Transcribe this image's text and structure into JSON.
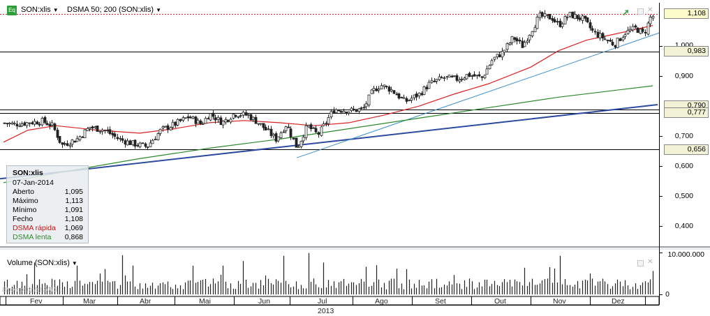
{
  "header": {
    "eq_badge": "Eq",
    "symbol_label": "SON:xlis",
    "indicator_label": "DSMA 50; 200 (SON:xlis)"
  },
  "info": {
    "symbol": "SON:xlis",
    "date": "07-Jan-2014",
    "rows": [
      {
        "label": "Aberto",
        "value": "1,095",
        "color": "#000000"
      },
      {
        "label": "Máximo",
        "value": "1,113",
        "color": "#000000"
      },
      {
        "label": "Mínimo",
        "value": "1,091",
        "color": "#000000"
      },
      {
        "label": "Fecho",
        "value": "1,108",
        "color": "#000000"
      },
      {
        "label": "DSMA rápida",
        "value": "1,069",
        "color": "#cc1111"
      },
      {
        "label": "DSMA lenta",
        "value": "0,868",
        "color": "#2a8a2a"
      }
    ]
  },
  "volume_header": "Volume (SON:xlis)",
  "watermark": "Bloomberg (c) 2013",
  "colors": {
    "candle": "#222222",
    "fast_ma": "#dd2222",
    "slow_ma": "#2a8a2a",
    "trend_blue": "#2d4aa0",
    "trend_light": "#3d8fd0",
    "hline": "#000000",
    "last_price_line": "#cc2222"
  },
  "chart_data": {
    "type": "candlestick",
    "y_axis": {
      "range": [
        0.35,
        1.13
      ],
      "ticks": [
        {
          "value": 0.4,
          "label": "0,400"
        },
        {
          "value": 0.5,
          "label": "0,500"
        },
        {
          "value": 0.6,
          "label": "0,600"
        },
        {
          "value": 0.7,
          "label": "0,700"
        },
        {
          "value": 0.9,
          "label": "0,900"
        },
        {
          "value": 1.0,
          "label": "1,000"
        }
      ]
    },
    "x_axis": {
      "months": [
        "Fev",
        "Mar",
        "Abr",
        "Mai",
        "Jun",
        "Jul",
        "Ago",
        "Set",
        "Out",
        "Nov",
        "Dez"
      ],
      "year": "2013"
    },
    "price_path": [
      {
        "x": 0,
        "y": 0.745
      },
      {
        "x": 20,
        "y": 0.74
      },
      {
        "x": 40,
        "y": 0.745
      },
      {
        "x": 60,
        "y": 0.75
      },
      {
        "x": 75,
        "y": 0.735
      },
      {
        "x": 88,
        "y": 0.67
      },
      {
        "x": 110,
        "y": 0.69
      },
      {
        "x": 128,
        "y": 0.73
      },
      {
        "x": 150,
        "y": 0.72
      },
      {
        "x": 170,
        "y": 0.69
      },
      {
        "x": 190,
        "y": 0.675
      },
      {
        "x": 210,
        "y": 0.665
      },
      {
        "x": 230,
        "y": 0.72
      },
      {
        "x": 250,
        "y": 0.74
      },
      {
        "x": 270,
        "y": 0.765
      },
      {
        "x": 288,
        "y": 0.74
      },
      {
        "x": 300,
        "y": 0.775
      },
      {
        "x": 318,
        "y": 0.745
      },
      {
        "x": 335,
        "y": 0.775
      },
      {
        "x": 355,
        "y": 0.77
      },
      {
        "x": 372,
        "y": 0.74
      },
      {
        "x": 395,
        "y": 0.69
      },
      {
        "x": 410,
        "y": 0.74
      },
      {
        "x": 425,
        "y": 0.66
      },
      {
        "x": 440,
        "y": 0.735
      },
      {
        "x": 455,
        "y": 0.705
      },
      {
        "x": 465,
        "y": 0.74
      },
      {
        "x": 478,
        "y": 0.79
      },
      {
        "x": 500,
        "y": 0.785
      },
      {
        "x": 520,
        "y": 0.79
      },
      {
        "x": 533,
        "y": 0.85
      },
      {
        "x": 545,
        "y": 0.87
      },
      {
        "x": 560,
        "y": 0.855
      },
      {
        "x": 580,
        "y": 0.815
      },
      {
        "x": 600,
        "y": 0.84
      },
      {
        "x": 615,
        "y": 0.875
      },
      {
        "x": 635,
        "y": 0.895
      },
      {
        "x": 655,
        "y": 0.89
      },
      {
        "x": 670,
        "y": 0.905
      },
      {
        "x": 690,
        "y": 0.895
      },
      {
        "x": 705,
        "y": 0.955
      },
      {
        "x": 720,
        "y": 0.98
      },
      {
        "x": 735,
        "y": 1.03
      },
      {
        "x": 748,
        "y": 1.0
      },
      {
        "x": 760,
        "y": 1.05
      },
      {
        "x": 772,
        "y": 1.1
      },
      {
        "x": 790,
        "y": 1.095
      },
      {
        "x": 800,
        "y": 1.07
      },
      {
        "x": 815,
        "y": 1.105
      },
      {
        "x": 835,
        "y": 1.09
      },
      {
        "x": 850,
        "y": 1.045
      },
      {
        "x": 862,
        "y": 1.03
      },
      {
        "x": 880,
        "y": 1.005
      },
      {
        "x": 895,
        "y": 1.045
      },
      {
        "x": 910,
        "y": 1.06
      },
      {
        "x": 922,
        "y": 1.04
      },
      {
        "x": 932,
        "y": 1.1
      }
    ],
    "fast_ma": [
      {
        "x": 5,
        "y": 0.68
      },
      {
        "x": 40,
        "y": 0.72
      },
      {
        "x": 80,
        "y": 0.735
      },
      {
        "x": 140,
        "y": 0.72
      },
      {
        "x": 200,
        "y": 0.71
      },
      {
        "x": 250,
        "y": 0.725
      },
      {
        "x": 300,
        "y": 0.745
      },
      {
        "x": 350,
        "y": 0.752
      },
      {
        "x": 400,
        "y": 0.745
      },
      {
        "x": 450,
        "y": 0.735
      },
      {
        "x": 500,
        "y": 0.745
      },
      {
        "x": 550,
        "y": 0.77
      },
      {
        "x": 600,
        "y": 0.8
      },
      {
        "x": 650,
        "y": 0.84
      },
      {
        "x": 700,
        "y": 0.875
      },
      {
        "x": 760,
        "y": 0.93
      },
      {
        "x": 800,
        "y": 0.985
      },
      {
        "x": 840,
        "y": 1.02
      },
      {
        "x": 880,
        "y": 1.04
      },
      {
        "x": 935,
        "y": 1.069
      }
    ],
    "slow_ma": [
      {
        "x": 5,
        "y": 0.545
      },
      {
        "x": 100,
        "y": 0.585
      },
      {
        "x": 200,
        "y": 0.625
      },
      {
        "x": 300,
        "y": 0.66
      },
      {
        "x": 400,
        "y": 0.69
      },
      {
        "x": 500,
        "y": 0.725
      },
      {
        "x": 600,
        "y": 0.76
      },
      {
        "x": 700,
        "y": 0.795
      },
      {
        "x": 800,
        "y": 0.83
      },
      {
        "x": 935,
        "y": 0.868
      }
    ],
    "trend_blue": [
      {
        "x": 0,
        "y": 0.558
      },
      {
        "x": 942,
        "y": 0.805
      }
    ],
    "trend_light": [
      {
        "x": 425,
        "y": 0.628
      },
      {
        "x": 945,
        "y": 1.045
      }
    ],
    "horizontal_levels": [
      {
        "value": 0.983,
        "label": "0,983",
        "boxed": true
      },
      {
        "value": 0.79,
        "label": "0,790",
        "boxed": true
      },
      {
        "value": 0.777,
        "label": "0,777",
        "boxed": true
      },
      {
        "value": 0.656,
        "label": "0,656",
        "boxed": true
      }
    ],
    "last_price": {
      "value": 1.108,
      "label": "1,108"
    },
    "volume_axis": {
      "range": [
        0,
        10000000
      ],
      "ticks": [
        {
          "value": 10000000,
          "label": "10.000.000"
        },
        {
          "value": 0,
          "label": "0"
        }
      ]
    }
  }
}
